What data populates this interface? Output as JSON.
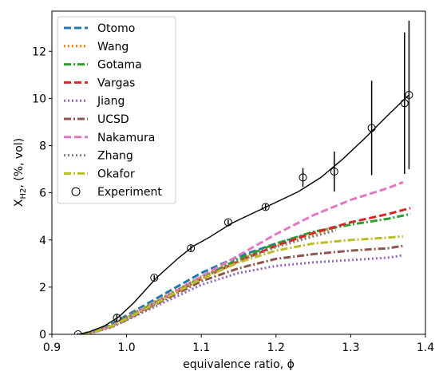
{
  "chart_data": {
    "type": "line",
    "title": "",
    "xlabel": "equivalence ratio, ϕ",
    "ylabel": "X_H2, (%, vol)",
    "ylabel_main": "X",
    "ylabel_sub": "H2",
    "ylabel_rest": ", (%, vol)",
    "xlim": [
      0.9,
      1.4
    ],
    "ylim": [
      0,
      13.7
    ],
    "x_ticks": [
      0.9,
      1.0,
      1.1,
      1.2,
      1.3,
      1.4
    ],
    "x_tick_labels": [
      "0.9",
      "1.0",
      "1.1",
      "1.2",
      "1.3",
      "1.4"
    ],
    "y_ticks": [
      0,
      2,
      4,
      6,
      8,
      10,
      12
    ],
    "y_tick_labels": [
      "0",
      "2",
      "4",
      "6",
      "8",
      "10",
      "12"
    ],
    "grid": false,
    "legend_position": "top-left",
    "series": [
      {
        "name": "Otomo",
        "color": "#1f77b4",
        "dash": "dashed",
        "x": [
          0.94,
          0.96,
          0.98,
          1.0,
          1.05,
          1.1,
          1.15,
          1.2,
          1.25,
          1.28
        ],
        "y": [
          0.0,
          0.2,
          0.45,
          0.8,
          1.7,
          2.6,
          3.3,
          3.85,
          4.3,
          4.55
        ]
      },
      {
        "name": "Wang",
        "color": "#ff7f0e",
        "dash": "dotted",
        "x": [
          0.94,
          0.96,
          0.98,
          1.0,
          1.05,
          1.1,
          1.15,
          1.2,
          1.25,
          1.28
        ],
        "y": [
          0.0,
          0.18,
          0.4,
          0.75,
          1.6,
          2.45,
          3.15,
          3.75,
          4.2,
          4.45
        ]
      },
      {
        "name": "Gotama",
        "color": "#2ca02c",
        "dash": "dashdot",
        "x": [
          0.94,
          0.96,
          0.98,
          1.0,
          1.05,
          1.1,
          1.15,
          1.2,
          1.25,
          1.3,
          1.35,
          1.38
        ],
        "y": [
          0.0,
          0.15,
          0.35,
          0.7,
          1.55,
          2.4,
          3.2,
          3.85,
          4.35,
          4.65,
          4.9,
          5.1
        ]
      },
      {
        "name": "Vargas",
        "color": "#d62728",
        "dash": "dashed",
        "x": [
          0.94,
          0.96,
          0.98,
          1.0,
          1.05,
          1.1,
          1.15,
          1.2,
          1.25,
          1.3,
          1.35,
          1.38
        ],
        "y": [
          0.0,
          0.15,
          0.35,
          0.65,
          1.5,
          2.35,
          3.1,
          3.75,
          4.3,
          4.75,
          5.1,
          5.35
        ]
      },
      {
        "name": "Jiang",
        "color": "#9467bd",
        "dash": "dotted",
        "x": [
          0.94,
          0.96,
          0.98,
          1.0,
          1.05,
          1.1,
          1.15,
          1.2,
          1.25,
          1.3,
          1.35,
          1.37
        ],
        "y": [
          0.0,
          0.12,
          0.3,
          0.6,
          1.35,
          2.1,
          2.6,
          2.9,
          3.05,
          3.15,
          3.25,
          3.35
        ]
      },
      {
        "name": "UCSD",
        "color": "#8c564b",
        "dash": "dashdot",
        "x": [
          0.94,
          0.96,
          0.98,
          1.0,
          1.05,
          1.1,
          1.15,
          1.2,
          1.25,
          1.3,
          1.35,
          1.37
        ],
        "y": [
          0.0,
          0.13,
          0.32,
          0.62,
          1.45,
          2.25,
          2.8,
          3.2,
          3.4,
          3.55,
          3.65,
          3.75
        ]
      },
      {
        "name": "Nakamura",
        "color": "#e377c2",
        "dash": "dashed",
        "x": [
          0.94,
          0.96,
          0.98,
          1.0,
          1.05,
          1.1,
          1.15,
          1.2,
          1.25,
          1.3,
          1.35,
          1.37
        ],
        "y": [
          0.0,
          0.14,
          0.34,
          0.67,
          1.55,
          2.45,
          3.35,
          4.25,
          5.05,
          5.7,
          6.2,
          6.45
        ]
      },
      {
        "name": "Zhang",
        "color": "#7f7f7f",
        "dash": "dotted",
        "x": [
          0.94,
          0.96,
          0.98,
          1.0,
          1.05,
          1.1,
          1.15,
          1.2,
          1.25,
          1.28
        ],
        "y": [
          0.0,
          0.15,
          0.36,
          0.7,
          1.55,
          2.4,
          3.1,
          3.7,
          4.15,
          4.4
        ]
      },
      {
        "name": "Okafor",
        "color": "#bcbd22",
        "dash": "dashdot",
        "x": [
          0.94,
          0.96,
          0.98,
          1.0,
          1.05,
          1.1,
          1.15,
          1.2,
          1.25,
          1.3,
          1.35,
          1.37
        ],
        "y": [
          0.0,
          0.14,
          0.34,
          0.66,
          1.5,
          2.35,
          3.05,
          3.55,
          3.85,
          4.0,
          4.1,
          4.15
        ]
      }
    ],
    "experiment": {
      "name": "Experiment",
      "x": [
        0.935,
        0.987,
        1.037,
        1.086,
        1.136,
        1.186,
        1.236,
        1.278,
        1.328,
        1.372,
        1.378
      ],
      "y": [
        0.0,
        0.7,
        2.4,
        3.65,
        4.75,
        5.4,
        6.65,
        6.9,
        8.75,
        9.8,
        10.15
      ],
      "err": [
        0.05,
        0.15,
        0.1,
        0.12,
        0.1,
        0.12,
        0.4,
        0.85,
        2.0,
        3.0,
        3.15
      ]
    },
    "experiment_fit": {
      "x": [
        0.935,
        0.95,
        0.97,
        0.99,
        1.01,
        1.04,
        1.07,
        1.09,
        1.11,
        1.14,
        1.17,
        1.2,
        1.23,
        1.26,
        1.29,
        1.32,
        1.35,
        1.378
      ],
      "y": [
        0.0,
        0.1,
        0.35,
        0.75,
        1.35,
        2.4,
        3.25,
        3.75,
        4.1,
        4.7,
        5.15,
        5.6,
        6.05,
        6.65,
        7.45,
        8.35,
        9.3,
        10.15
      ]
    }
  }
}
